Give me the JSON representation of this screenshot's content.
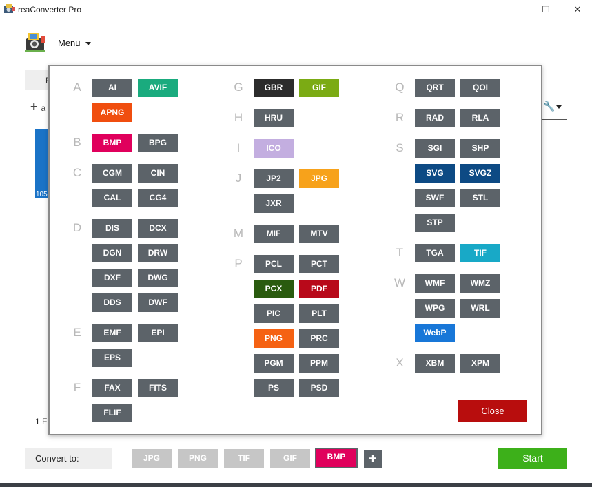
{
  "window": {
    "title": "reaConverter Pro",
    "minimize": "—",
    "maximize": "☐",
    "close": "✕"
  },
  "menu": {
    "label": "Menu"
  },
  "background": {
    "tab_fragment": "F",
    "add_fragment": "a",
    "thumb_caption": "105",
    "status_fragment": "1 Fi"
  },
  "formats": {
    "col1": [
      {
        "letter": "A",
        "items": [
          {
            "label": "AI",
            "color": "#5c6369"
          },
          {
            "label": "AVIF",
            "color": "#1aab7e"
          },
          {
            "label": "APNG",
            "color": "#f04e0f"
          }
        ]
      },
      {
        "letter": "B",
        "items": [
          {
            "label": "BMP",
            "color": "#e0005c"
          },
          {
            "label": "BPG",
            "color": "#5c6369"
          }
        ]
      },
      {
        "letter": "C",
        "items": [
          {
            "label": "CGM",
            "color": "#5c6369"
          },
          {
            "label": "CIN",
            "color": "#5c6369"
          },
          {
            "label": "CAL",
            "color": "#5c6369"
          },
          {
            "label": "CG4",
            "color": "#5c6369"
          }
        ]
      },
      {
        "letter": "D",
        "items": [
          {
            "label": "DIS",
            "color": "#5c6369"
          },
          {
            "label": "DCX",
            "color": "#5c6369"
          },
          {
            "label": "DGN",
            "color": "#5c6369"
          },
          {
            "label": "DRW",
            "color": "#5c6369"
          },
          {
            "label": "DXF",
            "color": "#5c6369"
          },
          {
            "label": "DWG",
            "color": "#5c6369"
          },
          {
            "label": "DDS",
            "color": "#5c6369"
          },
          {
            "label": "DWF",
            "color": "#5c6369"
          }
        ]
      },
      {
        "letter": "E",
        "items": [
          {
            "label": "EMF",
            "color": "#5c6369"
          },
          {
            "label": "EPI",
            "color": "#5c6369"
          },
          {
            "label": "EPS",
            "color": "#5c6369"
          }
        ]
      },
      {
        "letter": "F",
        "items": [
          {
            "label": "FAX",
            "color": "#5c6369"
          },
          {
            "label": "FITS",
            "color": "#5c6369"
          },
          {
            "label": "FLIF",
            "color": "#5c6369"
          }
        ]
      }
    ],
    "col2": [
      {
        "letter": "G",
        "items": [
          {
            "label": "GBR",
            "color": "#2c2c2c"
          },
          {
            "label": "GIF",
            "color": "#7bab14"
          }
        ]
      },
      {
        "letter": "H",
        "items": [
          {
            "label": "HRU",
            "color": "#5c6369"
          }
        ]
      },
      {
        "letter": "I",
        "items": [
          {
            "label": "ICO",
            "color": "#c3aee0"
          }
        ]
      },
      {
        "letter": "J",
        "items": [
          {
            "label": "JP2",
            "color": "#5c6369"
          },
          {
            "label": "JPG",
            "color": "#f7a21b"
          },
          {
            "label": "JXR",
            "color": "#5c6369"
          }
        ]
      },
      {
        "letter": "M",
        "items": [
          {
            "label": "MIF",
            "color": "#5c6369"
          },
          {
            "label": "MTV",
            "color": "#5c6369"
          }
        ]
      },
      {
        "letter": "P",
        "items": [
          {
            "label": "PCL",
            "color": "#5c6369"
          },
          {
            "label": "PCT",
            "color": "#5c6369"
          },
          {
            "label": "PCX",
            "color": "#2a5b0f"
          },
          {
            "label": "PDF",
            "color": "#b8091a"
          },
          {
            "label": "PIC",
            "color": "#5c6369"
          },
          {
            "label": "PLT",
            "color": "#5c6369"
          },
          {
            "label": "PNG",
            "color": "#f56213"
          },
          {
            "label": "PRC",
            "color": "#5c6369"
          },
          {
            "label": "PGM",
            "color": "#5c6369"
          },
          {
            "label": "PPM",
            "color": "#5c6369"
          },
          {
            "label": "PS",
            "color": "#5c6369"
          },
          {
            "label": "PSD",
            "color": "#5c6369"
          }
        ]
      }
    ],
    "col3": [
      {
        "letter": "Q",
        "items": [
          {
            "label": "QRT",
            "color": "#5c6369"
          },
          {
            "label": "QOI",
            "color": "#5c6369"
          }
        ]
      },
      {
        "letter": "R",
        "items": [
          {
            "label": "RAD",
            "color": "#5c6369"
          },
          {
            "label": "RLA",
            "color": "#5c6369"
          }
        ]
      },
      {
        "letter": "S",
        "items": [
          {
            "label": "SGI",
            "color": "#5c6369"
          },
          {
            "label": "SHP",
            "color": "#5c6369"
          },
          {
            "label": "SVG",
            "color": "#0d4a84"
          },
          {
            "label": "SVGZ",
            "color": "#0d4a84"
          },
          {
            "label": "SWF",
            "color": "#5c6369"
          },
          {
            "label": "STL",
            "color": "#5c6369"
          },
          {
            "label": "STP",
            "color": "#5c6369"
          }
        ]
      },
      {
        "letter": "T",
        "items": [
          {
            "label": "TGA",
            "color": "#5c6369"
          },
          {
            "label": "TIF",
            "color": "#18a9c7"
          }
        ]
      },
      {
        "letter": "W",
        "items": [
          {
            "label": "WMF",
            "color": "#5c6369"
          },
          {
            "label": "WMZ",
            "color": "#5c6369"
          },
          {
            "label": "WPG",
            "color": "#5c6369"
          },
          {
            "label": "WRL",
            "color": "#5c6369"
          },
          {
            "label": "WebP",
            "color": "#1877d8"
          }
        ]
      },
      {
        "letter": "X",
        "items": [
          {
            "label": "XBM",
            "color": "#5c6369"
          },
          {
            "label": "XPM",
            "color": "#5c6369"
          }
        ]
      }
    ]
  },
  "dialog": {
    "close_label": "Close"
  },
  "bottom": {
    "convert_to_label": "Convert to:",
    "quick_formats": [
      {
        "label": "JPG",
        "active": false
      },
      {
        "label": "PNG",
        "active": false
      },
      {
        "label": "TIF",
        "active": false
      },
      {
        "label": "GIF",
        "active": false
      },
      {
        "label": "BMP",
        "active": true
      }
    ],
    "add_label": "+",
    "start_label": "Start"
  }
}
